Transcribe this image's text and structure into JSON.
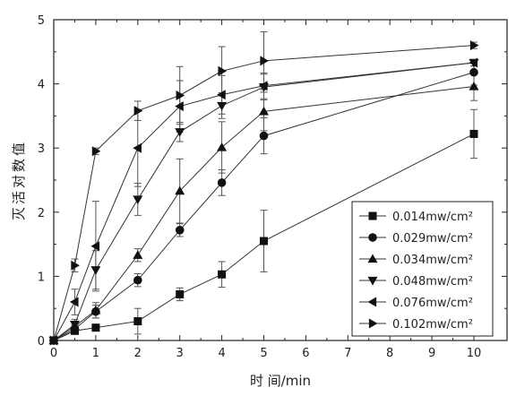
{
  "chart_data": {
    "type": "line",
    "title": "",
    "xlabel": "时 间/min",
    "ylabel": "灭活对数值",
    "xlim": [
      0,
      11
    ],
    "ylim": [
      0,
      5
    ],
    "x_ticks": [
      "0",
      "1",
      "2",
      "3",
      "4",
      "5",
      "6",
      "7",
      "8",
      "9",
      "10"
    ],
    "y_ticks": [
      "0",
      "1",
      "2",
      "3",
      "4",
      "5"
    ],
    "grid": false,
    "legend_position": "bottom-right",
    "series": [
      {
        "name": "0.014mw/cm²",
        "marker": "square",
        "x": [
          0,
          0.5,
          1,
          2,
          3,
          4,
          5,
          10
        ],
        "y": [
          0,
          0.15,
          0.2,
          0.3,
          0.72,
          1.03,
          1.55,
          3.22
        ],
        "err": [
          0,
          0.04,
          0.04,
          0.2,
          0.1,
          0.2,
          0.48,
          0.38
        ]
      },
      {
        "name": "0.029mw/cm²",
        "marker": "circle",
        "x": [
          0,
          0.5,
          1,
          2,
          3,
          4,
          5,
          10
        ],
        "y": [
          0,
          0.18,
          0.45,
          0.94,
          1.72,
          2.46,
          3.19,
          4.18
        ],
        "err": [
          0,
          0.06,
          0.1,
          0.1,
          0.1,
          0.2,
          0.28,
          0.2
        ]
      },
      {
        "name": "0.034mw/cm²",
        "marker": "triangle-up",
        "x": [
          0,
          0.5,
          1,
          2,
          3,
          4,
          5,
          10
        ],
        "y": [
          0,
          0.22,
          0.47,
          1.33,
          2.33,
          3.01,
          3.57,
          3.96
        ],
        "err": [
          0,
          0.06,
          0.12,
          0.1,
          0.5,
          0.4,
          0.3,
          0.22
        ]
      },
      {
        "name": "0.048mw/cm²",
        "marker": "triangle-down",
        "x": [
          0,
          0.5,
          1,
          2,
          3,
          4,
          5,
          10
        ],
        "y": [
          0,
          0.25,
          1.1,
          2.2,
          3.25,
          3.66,
          3.95,
          4.33
        ],
        "err": [
          0,
          0.08,
          0.3,
          0.25,
          0.15,
          0.2,
          0.2,
          0.05
        ]
      },
      {
        "name": "0.076mw/cm²",
        "marker": "triangle-left",
        "x": [
          0,
          0.5,
          1,
          2,
          3,
          4,
          5,
          10
        ],
        "y": [
          0,
          0.6,
          1.47,
          3.0,
          3.65,
          3.83,
          3.97,
          4.33
        ],
        "err": [
          0,
          0.2,
          0.7,
          0.6,
          0.4,
          0.3,
          0.2,
          0.05
        ]
      },
      {
        "name": "0.102mw/cm²",
        "marker": "triangle-right",
        "x": [
          0,
          0.5,
          1,
          2,
          3,
          4,
          5,
          10
        ],
        "y": [
          0,
          1.17,
          2.95,
          3.58,
          3.82,
          4.2,
          4.36,
          4.6
        ],
        "err": [
          0,
          0.1,
          0.05,
          0.15,
          0.45,
          0.38,
          0.45,
          0.05
        ]
      }
    ]
  }
}
